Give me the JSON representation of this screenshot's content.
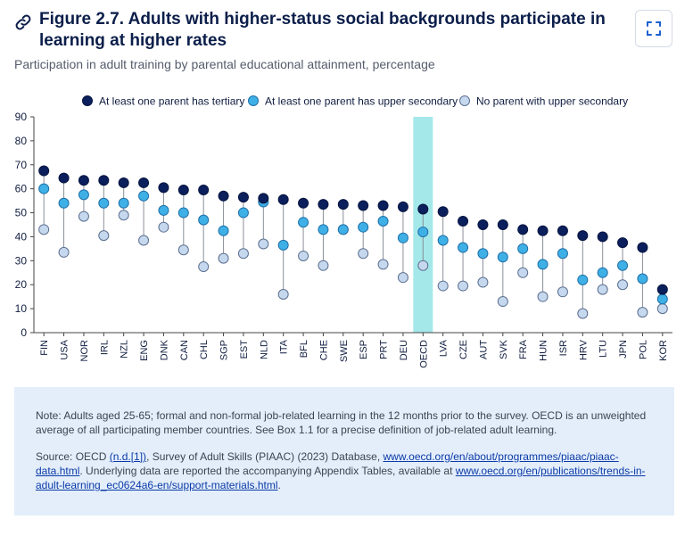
{
  "header": {
    "title": "Figure 2.7. Adults with higher-status social backgrounds participate in learning at higher rates",
    "subtitle": "Participation in adult training by parental educational attainment, percentage"
  },
  "colors": {
    "tertiary": "#0b1f5c",
    "upper_secondary": "#3fb0e6",
    "no_upper_secondary": "#c5d8ee",
    "highlight": "#a4e8ea",
    "notes_bg": "#e3eefa"
  },
  "chart_data": {
    "type": "scatter",
    "title": "",
    "xlabel": "",
    "ylabel": "",
    "ylim": [
      0,
      90
    ],
    "yticks": [
      0,
      10,
      20,
      30,
      40,
      50,
      60,
      70,
      80,
      90
    ],
    "highlight_category": "OECD",
    "legend_position": "top",
    "categories": [
      "FIN",
      "USA",
      "NOR",
      "IRL",
      "NZL",
      "ENG",
      "DNK",
      "CAN",
      "CHL",
      "SGP",
      "EST",
      "NLD",
      "ITA",
      "BFL",
      "CHE",
      "SWE",
      "ESP",
      "PRT",
      "DEU",
      "OECD",
      "LVA",
      "CZE",
      "AUT",
      "SVK",
      "FRA",
      "HUN",
      "ISR",
      "HRV",
      "LTU",
      "JPN",
      "POL",
      "KOR"
    ],
    "series": [
      {
        "name": "At least one parent has tertiary",
        "values": [
          67.5,
          64.5,
          63.5,
          63.5,
          62.5,
          62.5,
          60.5,
          59.5,
          59.5,
          57,
          56.5,
          56,
          55.5,
          54,
          53.5,
          53.5,
          53,
          53,
          52.5,
          51.5,
          50.5,
          46.5,
          45,
          45,
          43,
          42.5,
          42.5,
          40.5,
          40,
          37.5,
          35.5,
          18
        ]
      },
      {
        "name": "At least one parent has upper secondary",
        "values": [
          60,
          54,
          57.5,
          54,
          54,
          57,
          51,
          50,
          47,
          42.5,
          50,
          54.5,
          36.5,
          46,
          43,
          43,
          44,
          46.5,
          39.5,
          42,
          38.5,
          35.5,
          33,
          31.5,
          35,
          28.5,
          33,
          22,
          25,
          28,
          22.5,
          14
        ]
      },
      {
        "name": "No parent with upper secondary",
        "values": [
          43,
          33.5,
          48.5,
          40.5,
          49,
          38.5,
          44,
          34.5,
          27.5,
          31,
          33,
          37,
          16,
          32,
          28,
          43,
          33,
          28.5,
          23,
          28,
          19.5,
          19.5,
          21,
          13,
          25,
          15,
          17,
          8,
          18,
          20,
          8.5,
          10
        ]
      }
    ]
  },
  "notes": {
    "note": "Note: Adults aged 25-65; formal and non-formal job-related learning in the 12 months prior to the survey. OECD is an unweighted average of all participating member countries. See Box 1.1 for a precise definition of job-related adult learning.",
    "source_prefix": "Source: OECD ",
    "source_ref": "(n.d.[1])",
    "source_mid": ", Survey of Adult Skills (PIAAC) (2023) Database, ",
    "source_link1": "www.oecd.org/en/about/programmes/piaac/piaac-data.html",
    "source_mid2": ". Underlying data are reported the accompanying Appendix Tables, available at ",
    "source_link2": "www.oecd.org/en/publications/trends-in-adult-learning_ec0624a6-en/support-materials.html",
    "source_end": "."
  }
}
